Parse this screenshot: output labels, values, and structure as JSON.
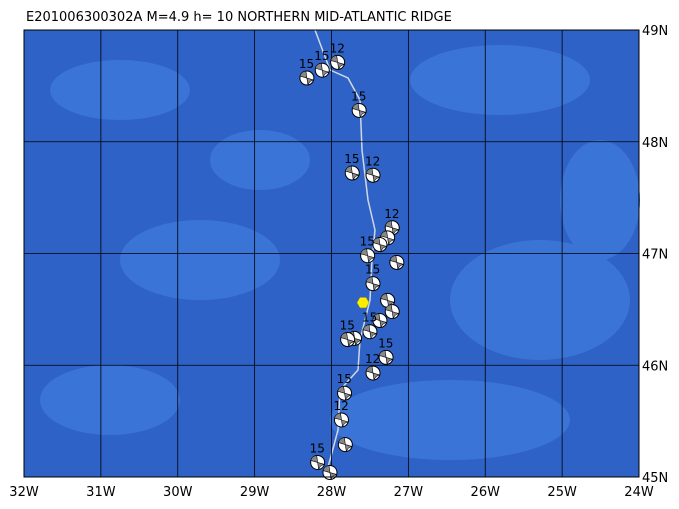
{
  "map": {
    "title": "E201006300302A  M=4.9  h= 10  NORTHERN MID-ATLANTIC RIDGE",
    "lonlim": [
      -32,
      -24
    ],
    "latlim": [
      45,
      49
    ],
    "lonticks": [
      {
        "value": -32,
        "label": "32W"
      },
      {
        "value": -31,
        "label": "31W"
      },
      {
        "value": -30,
        "label": "30W"
      },
      {
        "value": -29,
        "label": "29W"
      },
      {
        "value": -28,
        "label": "28W"
      },
      {
        "value": -27,
        "label": "27W"
      },
      {
        "value": -26,
        "label": "26W"
      },
      {
        "value": -25,
        "label": "25W"
      },
      {
        "value": -24,
        "label": "24W"
      }
    ],
    "latticks": [
      {
        "value": 49,
        "label": "49N"
      },
      {
        "value": 48,
        "label": "48N"
      },
      {
        "value": 47,
        "label": "47N"
      },
      {
        "value": 46,
        "label": "46N"
      },
      {
        "value": 45,
        "label": "45N"
      }
    ],
    "epicenter": {
      "lon": -27.59,
      "lat": 46.56,
      "color": "#ffee00"
    },
    "events": [
      {
        "lon": -27.92,
        "lat": 48.71,
        "label": "12"
      },
      {
        "lon": -28.12,
        "lat": 48.64,
        "label": "15"
      },
      {
        "lon": -28.32,
        "lat": 48.57,
        "label": "15"
      },
      {
        "lon": -27.64,
        "lat": 48.28,
        "label": "15"
      },
      {
        "lon": -27.73,
        "lat": 47.72,
        "label": "15"
      },
      {
        "lon": -27.46,
        "lat": 47.7,
        "label": "12"
      },
      {
        "lon": -27.21,
        "lat": 47.23,
        "label": "12"
      },
      {
        "lon": -27.27,
        "lat": 47.14
      },
      {
        "lon": -27.37,
        "lat": 47.08
      },
      {
        "lon": -27.53,
        "lat": 46.98,
        "label": "15"
      },
      {
        "lon": -27.15,
        "lat": 46.92
      },
      {
        "lon": -27.46,
        "lat": 46.73,
        "label": "15"
      },
      {
        "lon": -27.27,
        "lat": 46.58
      },
      {
        "lon": -27.21,
        "lat": 46.48
      },
      {
        "lon": -27.37,
        "lat": 46.4
      },
      {
        "lon": -27.5,
        "lat": 46.3,
        "label": "15"
      },
      {
        "lon": -27.7,
        "lat": 46.24
      },
      {
        "lon": -27.79,
        "lat": 46.23,
        "label": "15"
      },
      {
        "lon": -27.29,
        "lat": 46.07,
        "label": "15"
      },
      {
        "lon": -27.46,
        "lat": 45.93,
        "label": "12"
      },
      {
        "lon": -27.83,
        "lat": 45.75,
        "label": "15"
      },
      {
        "lon": -27.87,
        "lat": 45.51,
        "label": "12"
      },
      {
        "lon": -27.82,
        "lat": 45.29
      },
      {
        "lon": -28.18,
        "lat": 45.13,
        "label": "15"
      },
      {
        "lon": -28.02,
        "lat": 45.04
      }
    ]
  }
}
